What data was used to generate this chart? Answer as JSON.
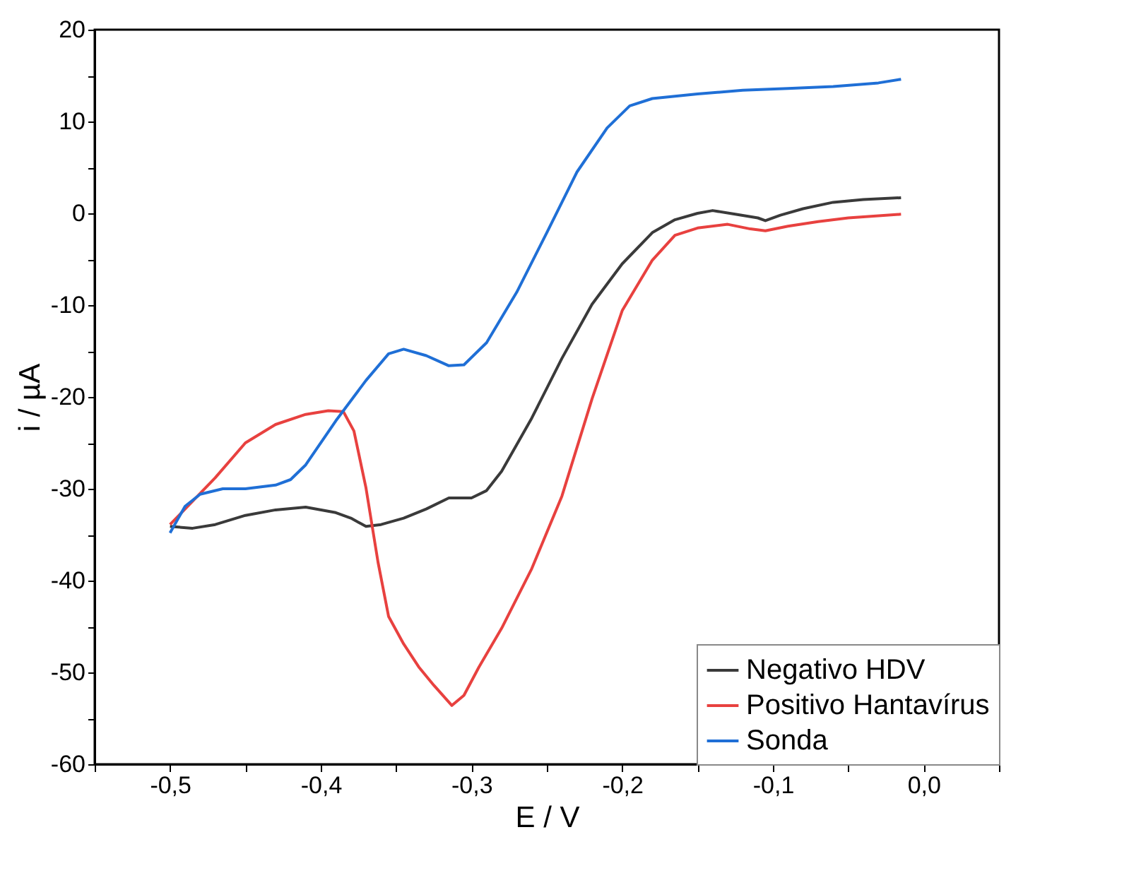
{
  "chart_data": {
    "type": "line",
    "xlabel": "E / V",
    "ylabel": "i / µA",
    "xlim": [
      -0.55,
      0.05
    ],
    "ylim": [
      -60,
      20
    ],
    "xticks": [
      {
        "value": -0.55,
        "label": null
      },
      {
        "value": -0.5,
        "label": "-0,5"
      },
      {
        "value": -0.45,
        "label": null
      },
      {
        "value": -0.4,
        "label": "-0,4"
      },
      {
        "value": -0.35,
        "label": null
      },
      {
        "value": -0.3,
        "label": "-0,3"
      },
      {
        "value": -0.25,
        "label": null
      },
      {
        "value": -0.2,
        "label": "-0,2"
      },
      {
        "value": -0.15,
        "label": null
      },
      {
        "value": -0.1,
        "label": "-0,1"
      },
      {
        "value": -0.05,
        "label": null
      },
      {
        "value": 0,
        "label": "0,0"
      },
      {
        "value": 0.05,
        "label": null
      }
    ],
    "yticks": [
      -60,
      {
        "value": -55,
        "label": null
      },
      -50,
      {
        "value": -45,
        "label": null
      },
      -40,
      {
        "value": -35,
        "label": null
      },
      -30,
      {
        "value": -25,
        "label": null
      },
      -20,
      {
        "value": -15,
        "label": null
      },
      -10,
      {
        "value": -5,
        "label": null
      },
      0,
      {
        "value": 5,
        "label": null
      },
      10,
      {
        "value": 15,
        "label": null
      },
      20
    ],
    "grid": false,
    "legend": "bottom right",
    "marker": "none",
    "line_style": "solid",
    "series": [
      {
        "name": "Negativo HDV",
        "color": "#3a3a3a",
        "x": [
          -0.5,
          -0.485,
          -0.47,
          -0.45,
          -0.43,
          -0.41,
          -0.39,
          -0.38,
          -0.37,
          -0.36,
          -0.345,
          -0.33,
          -0.315,
          -0.3,
          -0.29,
          -0.28,
          -0.26,
          -0.24,
          -0.22,
          -0.2,
          -0.18,
          -0.165,
          -0.15,
          -0.14,
          -0.125,
          -0.11,
          -0.105,
          -0.095,
          -0.08,
          -0.06,
          -0.04,
          -0.015
        ],
        "values": [
          -34.1,
          -34.3,
          -33.9,
          -32.9,
          -32.3,
          -32.0,
          -32.6,
          -33.2,
          -34.1,
          -33.9,
          -33.2,
          -32.2,
          -31.0,
          -31.0,
          -30.2,
          -28.1,
          -22.3,
          -15.8,
          -9.9,
          -5.5,
          -2.1,
          -0.7,
          0,
          0.3,
          -0.1,
          -0.5,
          -0.8,
          -0.2,
          0.5,
          1.2,
          1.5,
          1.7
        ]
      },
      {
        "name": "Positivo Hantavírus",
        "color": "#e8413f",
        "x": [
          -0.5,
          -0.49,
          -0.47,
          -0.45,
          -0.43,
          -0.41,
          -0.395,
          -0.385,
          -0.378,
          -0.37,
          -0.362,
          -0.355,
          -0.345,
          -0.335,
          -0.325,
          -0.313,
          -0.305,
          -0.295,
          -0.28,
          -0.26,
          -0.24,
          -0.22,
          -0.2,
          -0.18,
          -0.165,
          -0.15,
          -0.13,
          -0.115,
          -0.105,
          -0.09,
          -0.07,
          -0.05,
          -0.015
        ],
        "values": [
          -33.9,
          -32.2,
          -28.8,
          -25.0,
          -23.0,
          -21.9,
          -21.5,
          -21.6,
          -23.7,
          -29.9,
          -38.0,
          -43.9,
          -46.9,
          -49.4,
          -51.4,
          -53.6,
          -52.5,
          -49.4,
          -45.2,
          -38.7,
          -30.8,
          -20.2,
          -10.6,
          -5.1,
          -2.4,
          -1.6,
          -1.2,
          -1.7,
          -1.9,
          -1.4,
          -0.9,
          -0.5,
          -0.1
        ]
      },
      {
        "name": "Sonda",
        "color": "#1f6fd6",
        "x": [
          -0.5,
          -0.49,
          -0.48,
          -0.465,
          -0.45,
          -0.43,
          -0.42,
          -0.41,
          -0.39,
          -0.37,
          -0.355,
          -0.345,
          -0.33,
          -0.315,
          -0.305,
          -0.29,
          -0.27,
          -0.25,
          -0.23,
          -0.21,
          -0.195,
          -0.18,
          -0.15,
          -0.12,
          -0.09,
          -0.06,
          -0.03,
          -0.015
        ],
        "values": [
          -34.8,
          -31.9,
          -30.6,
          -30.0,
          -30.0,
          -29.6,
          -29.0,
          -27.4,
          -22.6,
          -18.2,
          -15.3,
          -14.8,
          -15.5,
          -16.6,
          -16.5,
          -14.1,
          -8.6,
          -2.1,
          4.5,
          9.3,
          11.7,
          12.5,
          13.0,
          13.4,
          13.6,
          13.8,
          14.2,
          14.6
        ]
      }
    ]
  }
}
